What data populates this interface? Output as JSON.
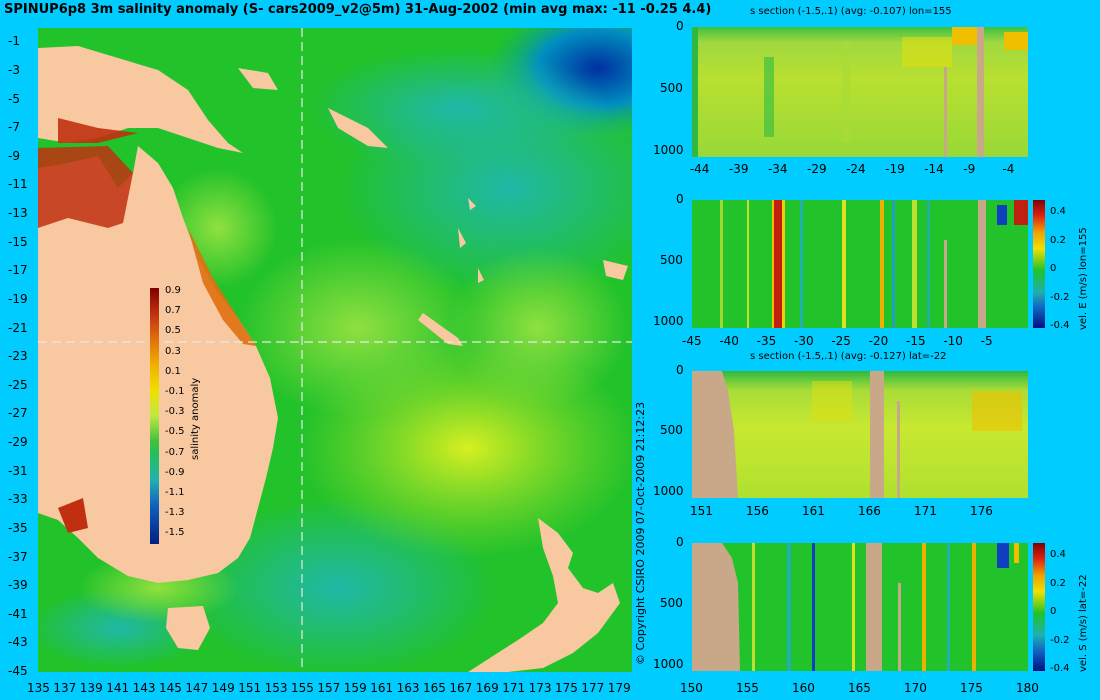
{
  "title": "SPINUP6p8 3m salinity anomaly (S- cars2009_v2@5m) 31-Aug-2002 (min avg max: -11 -0.25 4.4)",
  "copyright": "© Copyright CSIRO 2009   07-Oct-2009 21:12:23",
  "colors": {
    "background": "#00ccff",
    "land": "#f8c8a0",
    "section_land": "#c8a888",
    "sea": "#22c22a",
    "slice_line": "#e8e8e8"
  },
  "map": {
    "x_ticks": [
      "135",
      "137",
      "139",
      "141",
      "143",
      "145",
      "147",
      "149",
      "151",
      "153",
      "155",
      "157",
      "159",
      "161",
      "163",
      "165",
      "167",
      "169",
      "171",
      "173",
      "175",
      "177",
      "179"
    ],
    "y_ticks": [
      "-1",
      "-3",
      "-5",
      "-7",
      "-9",
      "-11",
      "-13",
      "-15",
      "-17",
      "-19",
      "-21",
      "-23",
      "-25",
      "-27",
      "-29",
      "-31",
      "-33",
      "-35",
      "-37",
      "-39",
      "-41",
      "-43",
      "-45"
    ],
    "colorbar_ticks": [
      "0.9",
      "0.7",
      "0.5",
      "0.3",
      "0.1",
      "-0.1",
      "-0.3",
      "-0.5",
      "-0.7",
      "-0.9",
      "-1.1",
      "-1.3",
      "-1.5"
    ],
    "colorbar_label": "salinity anomaly",
    "slice_lon": 155,
    "slice_lat": -22
  },
  "panels": {
    "p1_title": "s section (-1.5,.1) (avg: -0.107) lon=155",
    "p1_x": [
      "-44",
      "-39",
      "-34",
      "-29",
      "-24",
      "-19",
      "-14",
      "-9",
      "-4"
    ],
    "p2_x": [
      "-45",
      "-40",
      "-35",
      "-30",
      "-25",
      "-20",
      "-15",
      "-10",
      "-5"
    ],
    "p3_title": "s section (-1.5,.1) (avg: -0.127) lat=-22",
    "p3_x": [
      "151",
      "156",
      "161",
      "166",
      "171",
      "176"
    ],
    "p4_x": [
      "150",
      "155",
      "160",
      "165",
      "170",
      "175",
      "180"
    ],
    "depth_ticks": [
      "0",
      "500",
      "1000"
    ],
    "vel_cb_ticks": [
      "0.4",
      "0.2",
      "0",
      "-0.2",
      "-0.4"
    ],
    "p2_cb_label": "vel. E (m/s) lon=155",
    "p4_cb_label": "vel. S (m/s) lat=-22"
  },
  "chart_data": {
    "type": "heatmap",
    "title": "SPINUP6p8 3m salinity anomaly (S- cars2009_v2@5m) 31-Aug-2002 (min avg max: -11 -0.25 4.4)",
    "xlim": [
      135,
      180
    ],
    "ylim": [
      -45,
      0
    ],
    "colorbar": {
      "label": "salinity anomaly",
      "range": [
        -1.5,
        1.0
      ]
    },
    "stats": {
      "min": -11,
      "avg": -0.25,
      "max": 4.4
    },
    "sections": [
      {
        "title": "s section (-1.5,.1) (avg: -0.107) lon=155",
        "variable": "salinity anomaly",
        "x_range": [
          -45,
          0
        ],
        "depth_range": [
          0,
          1050
        ]
      },
      {
        "colorbar_label": "vel. E (m/s) lon=155",
        "variable": "vel. E",
        "x_range": [
          -45,
          0
        ],
        "depth_range": [
          0,
          1050
        ],
        "clim": [
          -0.4,
          0.45
        ]
      },
      {
        "title": "s section (-1.5,.1) (avg: -0.127) lat=-22",
        "variable": "salinity anomaly",
        "x_range": [
          150,
          180
        ],
        "depth_range": [
          0,
          1050
        ]
      },
      {
        "colorbar_label": "vel. S (m/s) lat=-22",
        "variable": "vel. S",
        "x_range": [
          150,
          180
        ],
        "depth_range": [
          0,
          1050
        ],
        "clim": [
          -0.4,
          0.45
        ]
      }
    ]
  }
}
